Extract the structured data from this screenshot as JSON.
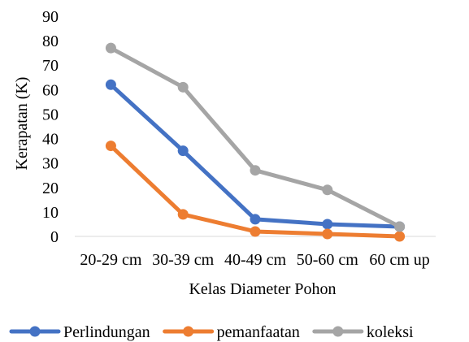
{
  "chart_data": {
    "type": "line",
    "title": "",
    "xlabel": "Kelas Diameter Pohon",
    "ylabel": "Kerapatan (K)",
    "categories": [
      "20-29 cm",
      "30-39 cm",
      "40-49 cm",
      "50-60 cm",
      "60 cm up"
    ],
    "ylim": [
      0,
      90
    ],
    "yticks": [
      0,
      10,
      20,
      30,
      40,
      50,
      60,
      70,
      80,
      90
    ],
    "grid": false,
    "legend": "bottom",
    "series": [
      {
        "name": "Perlindungan",
        "values": [
          62,
          35,
          7,
          5,
          4
        ],
        "color": "#4472C4"
      },
      {
        "name": "pemanfaatan",
        "values": [
          37,
          9,
          2,
          1,
          0
        ],
        "color": "#ED7D31"
      },
      {
        "name": "koleksi",
        "values": [
          77,
          61,
          27,
          19,
          4
        ],
        "color": "#A5A5A5"
      }
    ]
  }
}
